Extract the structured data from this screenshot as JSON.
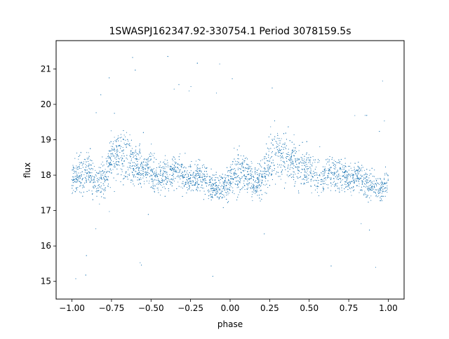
{
  "chart_data": {
    "type": "scatter",
    "title": "1SWASPJ162347.92-330754.1 Period 3078159.5s",
    "xlabel": "phase",
    "ylabel": "flux",
    "xlim": [
      -1.1,
      1.1
    ],
    "ylim": [
      14.5,
      21.8
    ],
    "xticks": [
      -1.0,
      -0.75,
      -0.5,
      -0.25,
      0.0,
      0.25,
      0.5,
      0.75,
      1.0
    ],
    "xtick_labels": [
      "−1.00",
      "−0.75",
      "−0.50",
      "−0.25",
      "0.00",
      "0.25",
      "0.50",
      "0.75",
      "1.00"
    ],
    "yticks": [
      15,
      16,
      17,
      18,
      19,
      20,
      21
    ],
    "ytick_labels": [
      "15",
      "16",
      "17",
      "18",
      "19",
      "20",
      "21"
    ],
    "grid": false,
    "marker_color": "#1f77b4",
    "points_note_free": true,
    "phase_folded_profile": {
      "phase": [
        -1.0,
        -0.95,
        -0.9,
        -0.85,
        -0.8,
        -0.75,
        -0.7,
        -0.65,
        -0.6,
        -0.55,
        -0.5,
        -0.45,
        -0.4,
        -0.35,
        -0.3,
        -0.25,
        -0.2,
        -0.15,
        -0.1,
        -0.05,
        0.0,
        0.05,
        0.1,
        0.15,
        0.2,
        0.25,
        0.3,
        0.35,
        0.4,
        0.45,
        0.5,
        0.55,
        0.6,
        0.65,
        0.7,
        0.75,
        0.8,
        0.85,
        0.9,
        0.95,
        1.0
      ],
      "median_flux": [
        17.9,
        18.0,
        18.1,
        17.8,
        17.9,
        18.4,
        18.6,
        18.5,
        18.3,
        18.2,
        18.1,
        17.9,
        18.0,
        18.1,
        18.0,
        17.9,
        18.0,
        17.8,
        17.7,
        17.6,
        17.8,
        18.0,
        18.1,
        17.8,
        17.9,
        18.4,
        18.6,
        18.5,
        18.3,
        18.2,
        18.1,
        17.9,
        18.0,
        18.1,
        18.0,
        17.9,
        18.0,
        17.8,
        17.7,
        17.6,
        17.9
      ],
      "spread": [
        0.5,
        0.8,
        0.7,
        0.6,
        0.6,
        0.9,
        1.0,
        0.9,
        0.8,
        0.7,
        0.7,
        0.6,
        0.6,
        0.6,
        0.6,
        0.5,
        0.6,
        0.6,
        0.5,
        0.5,
        0.6,
        0.8,
        0.7,
        0.6,
        0.6,
        0.9,
        1.0,
        0.9,
        0.8,
        0.7,
        0.7,
        0.6,
        0.6,
        0.6,
        0.6,
        0.5,
        0.6,
        0.6,
        0.5,
        0.5,
        0.5
      ]
    }
  }
}
